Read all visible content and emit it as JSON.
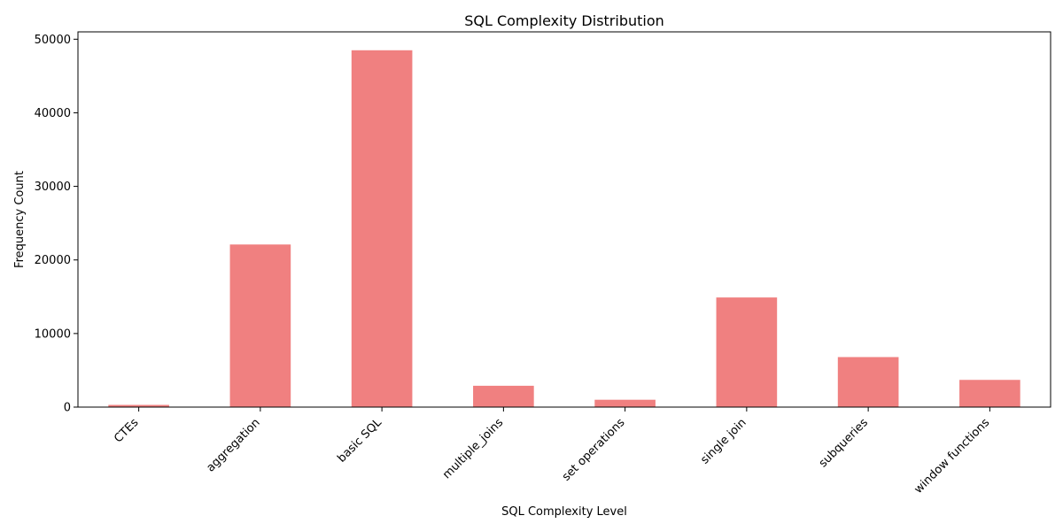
{
  "chart_data": {
    "type": "bar",
    "title": "SQL Complexity Distribution",
    "xlabel": "SQL Complexity Level",
    "ylabel": "Frequency Count",
    "categories": [
      "CTEs",
      "aggregation",
      "basic SQL",
      "multiple_joins",
      "set operations",
      "single join",
      "subqueries",
      "window functions"
    ],
    "values": [
      300,
      22100,
      48500,
      2900,
      1000,
      14900,
      6800,
      3700
    ],
    "ylim": [
      0,
      51000
    ],
    "yticks": [
      0,
      10000,
      20000,
      30000,
      40000,
      50000
    ],
    "bar_color": "#f08080",
    "grid": false,
    "legend": "none"
  }
}
